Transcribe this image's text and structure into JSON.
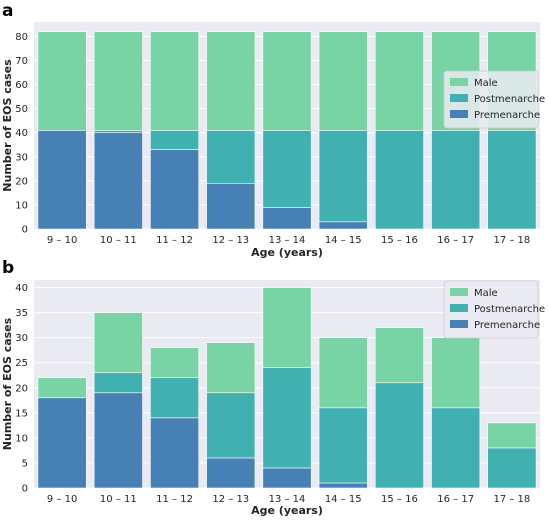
{
  "chart_data": [
    {
      "panel_label": "a",
      "type": "bar",
      "stacked": true,
      "categories": [
        "9 – 10",
        "10 – 11",
        "11 – 12",
        "12 – 13",
        "13 – 14",
        "14 – 15",
        "15 – 16",
        "16 – 17",
        "17 – 18"
      ],
      "series": [
        {
          "name": "Premenarche",
          "values": [
            41,
            40,
            33,
            19,
            9,
            3,
            0,
            0,
            0
          ]
        },
        {
          "name": "Postmenarche",
          "values": [
            0,
            1,
            8,
            22,
            32,
            38,
            41,
            41,
            41
          ]
        },
        {
          "name": "Male",
          "values": [
            41,
            41,
            41,
            41,
            41,
            41,
            41,
            41,
            41
          ]
        }
      ],
      "xlabel": "Age (years)",
      "ylabel": "Number of EOS cases",
      "ylim": [
        0,
        86
      ],
      "yticks": [
        0,
        10,
        20,
        30,
        40,
        50,
        60,
        70,
        80
      ],
      "grid": true,
      "legend": "right"
    },
    {
      "panel_label": "b",
      "type": "bar",
      "stacked": true,
      "categories": [
        "9 – 10",
        "10 – 11",
        "11 – 12",
        "12 – 13",
        "13 – 14",
        "14 – 15",
        "15 – 16",
        "16 – 17",
        "17 – 18"
      ],
      "series": [
        {
          "name": "Premenarche",
          "values": [
            18,
            19,
            14,
            6,
            4,
            1,
            0,
            0,
            0
          ]
        },
        {
          "name": "Postmenarche",
          "values": [
            0,
            4,
            8,
            13,
            20,
            15,
            21,
            16,
            8
          ]
        },
        {
          "name": "Male",
          "values": [
            4,
            12,
            6,
            10,
            16,
            14,
            11,
            14,
            5
          ]
        }
      ],
      "xlabel": "Age (years)",
      "ylabel": "Number of EOS cases",
      "ylim": [
        0,
        41.5
      ],
      "yticks": [
        0,
        5,
        10,
        15,
        20,
        25,
        30,
        35,
        40
      ],
      "grid": true,
      "legend": "top-right"
    }
  ],
  "colors": {
    "Male": "#78d3a5",
    "Postmenarche": "#41b0b0",
    "Premenarche": "#4780b5",
    "axes_bg": "#eaeaf2",
    "grid": "#ffffff"
  },
  "legend_order": [
    "Male",
    "Postmenarche",
    "Premenarche"
  ]
}
